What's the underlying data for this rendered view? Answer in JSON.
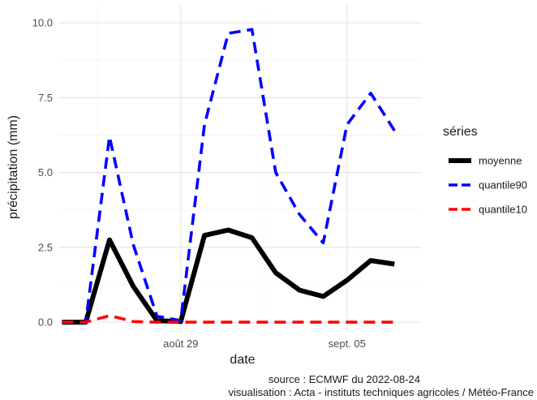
{
  "chart_data": {
    "type": "line",
    "xlabel": "date",
    "ylabel": "précipitation (mm)",
    "x": [
      "2022-08-24",
      "2022-08-25",
      "2022-08-26",
      "2022-08-27",
      "2022-08-28",
      "2022-08-29",
      "2022-08-30",
      "2022-08-31",
      "2022-09-01",
      "2022-09-02",
      "2022-09-03",
      "2022-09-04",
      "2022-09-05",
      "2022-09-06",
      "2022-09-07",
      "2022-09-08"
    ],
    "x_ticks": [
      {
        "date": "2022-08-29",
        "label": "août 29"
      },
      {
        "date": "2022-09-05",
        "label": "sept. 05"
      }
    ],
    "ylim": [
      -0.35,
      10.6
    ],
    "y_ticks": [
      {
        "value": 0,
        "label": "0.0"
      },
      {
        "value": 2.5,
        "label": "2.5"
      },
      {
        "value": 5,
        "label": "5.0"
      },
      {
        "value": 7.5,
        "label": "7.5"
      },
      {
        "value": 10,
        "label": "10.0"
      }
    ],
    "grid": true,
    "legend_title": "séries",
    "legend_position": "right",
    "series": [
      {
        "name": "moyenne",
        "color": "#000000",
        "dash": "solid",
        "values": [
          0.0,
          0.0,
          2.75,
          1.2,
          0.05,
          0.02,
          2.9,
          3.08,
          2.82,
          1.65,
          1.07,
          0.86,
          1.4,
          2.06,
          1.94,
          null
        ]
      },
      {
        "name": "quantile90",
        "color": "#0000ff",
        "dash": "dashed",
        "values": [
          0.0,
          0.0,
          6.2,
          2.6,
          0.2,
          0.05,
          6.6,
          9.65,
          9.78,
          5.0,
          3.6,
          2.65,
          6.6,
          7.65,
          6.4,
          null
        ]
      },
      {
        "name": "quantile10",
        "color": "#ff0000",
        "dash": "dashed",
        "values": [
          0.0,
          0.0,
          0.22,
          0.02,
          0.0,
          0.0,
          0.0,
          0.0,
          0.0,
          0.0,
          0.0,
          0.0,
          0.0,
          0.0,
          0.0,
          null
        ]
      }
    ]
  },
  "caption": {
    "source": "source : ECMWF du 2022-08-24",
    "visualisation": "visualisation : Acta - instituts techniques agricoles / Météo-France"
  }
}
